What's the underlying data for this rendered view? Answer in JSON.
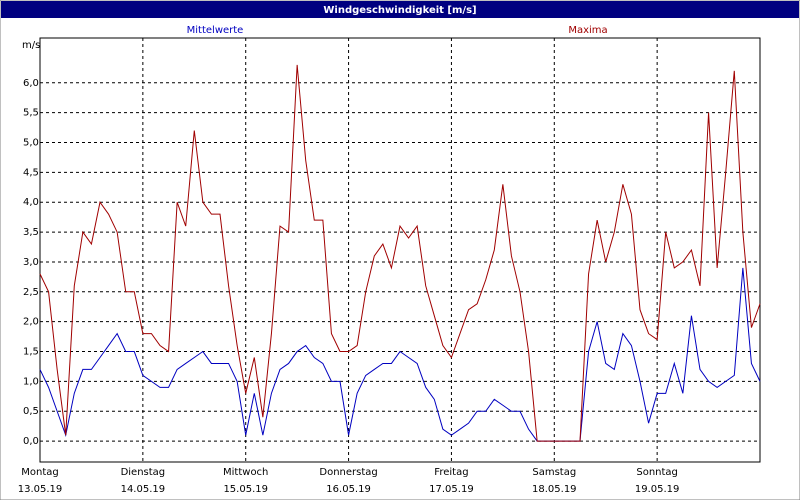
{
  "chart_data": {
    "type": "line",
    "title": "Windgeschwindigkeit [m/s]",
    "y_unit": "m/s",
    "x": [
      0,
      2,
      4,
      6,
      8,
      10,
      12,
      14,
      16,
      18,
      20,
      22,
      24,
      26,
      28,
      30,
      32,
      34,
      36,
      38,
      40,
      42,
      44,
      46,
      48,
      50,
      52,
      54,
      56,
      58,
      60,
      62,
      64,
      66,
      68,
      70,
      72,
      74,
      76,
      78,
      80,
      82,
      84,
      86,
      88,
      90,
      92,
      94,
      96,
      98,
      100,
      102,
      104,
      106,
      108,
      110,
      112,
      114,
      116,
      118,
      120,
      122,
      124,
      126,
      128,
      130,
      132,
      134,
      136,
      138,
      140,
      142,
      144,
      146,
      148,
      150,
      152,
      154,
      156,
      158,
      160,
      162,
      164,
      166,
      168
    ],
    "xlim": [
      0,
      168
    ],
    "xticks": [
      {
        "value": 0,
        "label": "Montag"
      },
      {
        "value": 24,
        "label": "Dienstag"
      },
      {
        "value": 48,
        "label": "Mittwoch"
      },
      {
        "value": 72,
        "label": "Donnerstag"
      },
      {
        "value": 96,
        "label": "Freitag"
      },
      {
        "value": 120,
        "label": "Samstag"
      },
      {
        "value": 144,
        "label": "Sonntag"
      }
    ],
    "xtick_dates": [
      "13.05.19",
      "14.05.19",
      "15.05.19",
      "16.05.19",
      "17.05.19",
      "18.05.19",
      "19.05.19"
    ],
    "ylim": [
      -0.35,
      6.75
    ],
    "yticks": [
      {
        "value": 0,
        "label": "0,0"
      },
      {
        "value": 0.5,
        "label": "0,5"
      },
      {
        "value": 1,
        "label": "1,0"
      },
      {
        "value": 1.5,
        "label": "1,5"
      },
      {
        "value": 2,
        "label": "2,0"
      },
      {
        "value": 2.5,
        "label": "2,5"
      },
      {
        "value": 3,
        "label": "3,0"
      },
      {
        "value": 3.5,
        "label": "3,5"
      },
      {
        "value": 4,
        "label": "4,0"
      },
      {
        "value": 4.5,
        "label": "4,5"
      },
      {
        "value": 5,
        "label": "5,0"
      },
      {
        "value": 5.5,
        "label": "5,5"
      },
      {
        "value": 6,
        "label": "6,0"
      }
    ],
    "grid": true,
    "series": [
      {
        "name": "Mittelwerte",
        "color": "#0000c0",
        "values": [
          1.2,
          0.9,
          0.5,
          0.1,
          0.8,
          1.2,
          1.2,
          1.4,
          1.6,
          1.8,
          1.5,
          1.5,
          1.1,
          1.0,
          0.9,
          0.9,
          1.2,
          1.3,
          1.4,
          1.5,
          1.3,
          1.3,
          1.3,
          1.0,
          0.1,
          0.8,
          0.1,
          0.8,
          1.2,
          1.3,
          1.5,
          1.6,
          1.4,
          1.3,
          1.0,
          1.0,
          0.1,
          0.8,
          1.1,
          1.2,
          1.3,
          1.3,
          1.5,
          1.4,
          1.3,
          0.9,
          0.7,
          0.2,
          0.1,
          0.2,
          0.3,
          0.5,
          0.5,
          0.7,
          0.6,
          0.5,
          0.5,
          0.2,
          0,
          0,
          0,
          0,
          0,
          0,
          1.5,
          2.0,
          1.3,
          1.2,
          1.8,
          1.6,
          1.0,
          0.3,
          0.8,
          0.8,
          1.3,
          0.8,
          2.1,
          1.2,
          1.0,
          0.9,
          1.0,
          1.1,
          2.9,
          1.3,
          1.0
        ]
      },
      {
        "name": "Maxima",
        "color": "#a00000",
        "values": [
          2.8,
          2.5,
          1.2,
          0.1,
          2.6,
          3.5,
          3.3,
          4.0,
          3.8,
          3.5,
          2.5,
          2.5,
          1.8,
          1.8,
          1.6,
          1.5,
          4.0,
          3.6,
          5.2,
          4.0,
          3.8,
          3.8,
          2.6,
          1.6,
          0.8,
          1.4,
          0.4,
          1.8,
          3.6,
          3.5,
          6.3,
          4.7,
          3.7,
          3.7,
          1.8,
          1.5,
          1.5,
          1.6,
          2.5,
          3.1,
          3.3,
          2.9,
          3.6,
          3.4,
          3.6,
          2.6,
          2.1,
          1.6,
          1.4,
          1.8,
          2.2,
          2.3,
          2.7,
          3.2,
          4.3,
          3.1,
          2.5,
          1.5,
          0,
          0,
          0,
          0,
          0,
          0,
          2.8,
          3.7,
          3.0,
          3.5,
          4.3,
          3.8,
          2.2,
          1.8,
          1.7,
          3.5,
          2.9,
          3.0,
          3.2,
          2.6,
          5.5,
          2.9,
          4.5,
          6.2,
          3.5,
          1.9,
          2.3
        ]
      }
    ]
  }
}
